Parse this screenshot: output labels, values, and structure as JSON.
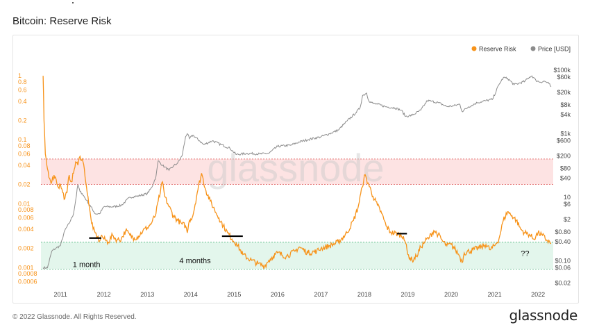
{
  "header": {
    "title": "Bitcoin: Reserve Risk"
  },
  "footer": {
    "copyright": "© 2022 Glassnode. All Rights Reserved.",
    "brand": "glassnode"
  },
  "colors": {
    "reserve_risk": "#f7931a",
    "price": "#8c8c8c",
    "red_band": "#fde3e3",
    "green_band": "#e3f6ec"
  },
  "chart_data": {
    "type": "line",
    "watermark": "glassnode",
    "legend": {
      "placement": "top-right",
      "entries": [
        "Reserve Risk",
        "Price [USD]"
      ]
    },
    "x_ticks": [
      "2011",
      "2012",
      "2013",
      "2014",
      "2015",
      "2016",
      "2017",
      "2018",
      "2019",
      "2020",
      "2021",
      "2022"
    ],
    "left_axis": {
      "scale": "log",
      "range": [
        0.0005,
        1.5
      ],
      "ticks": [
        {
          "v": 1,
          "label": "1"
        },
        {
          "v": 0.8,
          "label": "0.8"
        },
        {
          "v": 0.6,
          "label": "0.6"
        },
        {
          "v": 0.4,
          "label": "0.4"
        },
        {
          "v": 0.2,
          "label": "0.2"
        },
        {
          "v": 0.1,
          "label": "0.1"
        },
        {
          "v": 0.08,
          "label": "0.08"
        },
        {
          "v": 0.06,
          "label": "0.06"
        },
        {
          "v": 0.04,
          "label": "0.04"
        },
        {
          "v": 0.02,
          "label": "0.02"
        },
        {
          "v": 0.01,
          "label": "0.01"
        },
        {
          "v": 0.008,
          "label": "0.008"
        },
        {
          "v": 0.006,
          "label": "0.006"
        },
        {
          "v": 0.004,
          "label": "0.004"
        },
        {
          "v": 0.002,
          "label": "0.002"
        },
        {
          "v": 0.001,
          "label": "0.001"
        },
        {
          "v": 0.0008,
          "label": "0.0008"
        },
        {
          "v": 0.0006,
          "label": "0.0006"
        }
      ]
    },
    "right_axis": {
      "scale": "log",
      "range": [
        0.015,
        150000
      ],
      "ticks": [
        {
          "v": 100000,
          "label": "$100k"
        },
        {
          "v": 60000,
          "label": "$60k"
        },
        {
          "v": 20000,
          "label": "$20k"
        },
        {
          "v": 8000,
          "label": "$8k"
        },
        {
          "v": 4000,
          "label": "$4k"
        },
        {
          "v": 1000,
          "label": "$1k"
        },
        {
          "v": 600,
          "label": "$600"
        },
        {
          "v": 200,
          "label": "$200"
        },
        {
          "v": 80,
          "label": "$80"
        },
        {
          "v": 40,
          "label": "$40"
        },
        {
          "v": 10,
          "label": "10"
        },
        {
          "v": 6,
          "label": "$6"
        },
        {
          "v": 2,
          "label": "$2"
        },
        {
          "v": 0.8,
          "label": "$0.80"
        },
        {
          "v": 0.4,
          "label": "$0.40"
        },
        {
          "v": 0.1,
          "label": "$0.10"
        },
        {
          "v": 0.06,
          "label": "$0.06"
        },
        {
          "v": 0.02,
          "label": "$0.02"
        }
      ]
    },
    "bands": [
      {
        "name": "red",
        "from": 0.02,
        "to": 0.05
      },
      {
        "name": "green",
        "from": 0.00095,
        "to": 0.0025
      }
    ],
    "annotations": [
      {
        "text": "1 month",
        "x": 2011.6,
        "y": 0.00102
      },
      {
        "text": "4 months",
        "x": 2014.1,
        "y": 0.00117
      },
      {
        "text": "??",
        "x": 2021.7,
        "y": 0.00152
      }
    ],
    "marker_segments": [
      {
        "x_from": 2011.66,
        "x_to": 2011.94,
        "y": 0.0029
      },
      {
        "x_from": 2014.72,
        "x_to": 2015.2,
        "y": 0.0031
      },
      {
        "x_from": 2018.75,
        "x_to": 2018.98,
        "y": 0.0034
      }
    ],
    "series": [
      {
        "name": "Reserve Risk",
        "axis": "left",
        "x": [
          2010.6,
          2010.62,
          2010.65,
          2010.7,
          2010.75,
          2010.8,
          2010.85,
          2010.9,
          2010.95,
          2011.0,
          2011.05,
          2011.1,
          2011.15,
          2011.2,
          2011.25,
          2011.3,
          2011.35,
          2011.4,
          2011.45,
          2011.5,
          2011.55,
          2011.6,
          2011.65,
          2011.7,
          2011.75,
          2011.8,
          2011.85,
          2011.9,
          2011.95,
          2012.0,
          2012.1,
          2012.2,
          2012.3,
          2012.4,
          2012.5,
          2012.6,
          2012.7,
          2012.8,
          2012.9,
          2013.0,
          2013.1,
          2013.2,
          2013.25,
          2013.3,
          2013.35,
          2013.4,
          2013.5,
          2013.6,
          2013.7,
          2013.8,
          2013.88,
          2013.92,
          2013.97,
          2014.05,
          2014.15,
          2014.25,
          2014.35,
          2014.45,
          2014.55,
          2014.65,
          2014.75,
          2014.85,
          2014.95,
          2015.05,
          2015.2,
          2015.4,
          2015.55,
          2015.7,
          2015.8,
          2015.9,
          2016.0,
          2016.2,
          2016.4,
          2016.5,
          2016.7,
          2016.9,
          2017.0,
          2017.2,
          2017.4,
          2017.6,
          2017.75,
          2017.85,
          2017.95,
          2018.0,
          2018.1,
          2018.2,
          2018.3,
          2018.4,
          2018.5,
          2018.6,
          2018.8,
          2018.9,
          2018.95,
          2019.0,
          2019.1,
          2019.2,
          2019.3,
          2019.4,
          2019.5,
          2019.6,
          2019.7,
          2019.8,
          2019.9,
          2020.0,
          2020.1,
          2020.2,
          2020.25,
          2020.3,
          2020.5,
          2020.7,
          2020.8,
          2020.9,
          2021.0,
          2021.1,
          2021.2,
          2021.3,
          2021.4,
          2021.5,
          2021.6,
          2021.7,
          2021.8,
          2021.9,
          2022.0,
          2022.1,
          2022.2,
          2022.3
        ],
        "y": [
          1.0,
          0.2,
          0.06,
          0.035,
          0.025,
          0.022,
          0.028,
          0.024,
          0.018,
          0.02,
          0.015,
          0.012,
          0.015,
          0.028,
          0.022,
          0.03,
          0.045,
          0.04,
          0.055,
          0.05,
          0.035,
          0.018,
          0.01,
          0.006,
          0.004,
          0.0035,
          0.003,
          0.0026,
          0.0032,
          0.0028,
          0.0025,
          0.0032,
          0.0027,
          0.0028,
          0.0038,
          0.0032,
          0.0029,
          0.0031,
          0.0038,
          0.0042,
          0.005,
          0.007,
          0.011,
          0.015,
          0.022,
          0.013,
          0.009,
          0.0065,
          0.0055,
          0.0048,
          0.0045,
          0.0035,
          0.0055,
          0.0065,
          0.015,
          0.03,
          0.016,
          0.011,
          0.008,
          0.006,
          0.0045,
          0.0035,
          0.0028,
          0.0024,
          0.0016,
          0.0013,
          0.00115,
          0.00105,
          0.0013,
          0.0015,
          0.0017,
          0.0015,
          0.0018,
          0.0021,
          0.0017,
          0.0018,
          0.002,
          0.0022,
          0.0025,
          0.0035,
          0.0055,
          0.0085,
          0.018,
          0.028,
          0.02,
          0.013,
          0.0095,
          0.007,
          0.0045,
          0.0036,
          0.0033,
          0.0031,
          0.0024,
          0.0016,
          0.0013,
          0.0015,
          0.0021,
          0.0026,
          0.003,
          0.0038,
          0.0033,
          0.0026,
          0.0022,
          0.0023,
          0.0019,
          0.0015,
          0.0012,
          0.0017,
          0.0019,
          0.0021,
          0.0023,
          0.0019,
          0.0022,
          0.0028,
          0.0055,
          0.0075,
          0.0065,
          0.0055,
          0.004,
          0.0035,
          0.0033,
          0.0028,
          0.0035,
          0.0032,
          0.0027,
          0.0024
        ]
      },
      {
        "name": "Price [USD]",
        "axis": "right",
        "x": [
          2010.6,
          2010.7,
          2010.8,
          2010.9,
          2011.0,
          2011.1,
          2011.2,
          2011.3,
          2011.35,
          2011.4,
          2011.45,
          2011.5,
          2011.6,
          2011.7,
          2011.8,
          2011.9,
          2012.0,
          2012.2,
          2012.4,
          2012.6,
          2012.8,
          2013.0,
          2013.1,
          2013.2,
          2013.25,
          2013.3,
          2013.35,
          2013.4,
          2013.5,
          2013.6,
          2013.7,
          2013.8,
          2013.88,
          2013.92,
          2013.97,
          2014.05,
          2014.2,
          2014.3,
          2014.5,
          2014.7,
          2014.9,
          2015.05,
          2015.3,
          2015.6,
          2015.8,
          2016.0,
          2016.3,
          2016.5,
          2016.7,
          2017.0,
          2017.2,
          2017.4,
          2017.6,
          2017.8,
          2017.9,
          2017.96,
          2018.05,
          2018.1,
          2018.2,
          2018.3,
          2018.5,
          2018.7,
          2018.85,
          2018.95,
          2019.1,
          2019.3,
          2019.45,
          2019.55,
          2019.7,
          2019.9,
          2020.05,
          2020.2,
          2020.25,
          2020.4,
          2020.6,
          2020.8,
          2020.95,
          2021.1,
          2021.2,
          2021.3,
          2021.45,
          2021.55,
          2021.7,
          2021.8,
          2021.86,
          2021.95,
          2022.05,
          2022.15,
          2022.25,
          2022.3
        ],
        "y": [
          0.06,
          0.06,
          0.2,
          0.25,
          0.3,
          0.9,
          1.5,
          3,
          8,
          25,
          15,
          13,
          8,
          5,
          3,
          3,
          5,
          5,
          5.5,
          10,
          11,
          13,
          20,
          45,
          140,
          120,
          100,
          90,
          70,
          95,
          120,
          200,
          800,
          1000,
          700,
          900,
          600,
          450,
          600,
          450,
          350,
          220,
          240,
          230,
          240,
          400,
          430,
          550,
          650,
          800,
          1000,
          1300,
          2500,
          4500,
          6500,
          16000,
          19000,
          11000,
          9000,
          8500,
          7000,
          6500,
          5500,
          3500,
          3800,
          5500,
          11000,
          10500,
          9500,
          7200,
          7500,
          8500,
          5000,
          7000,
          9500,
          11000,
          12000,
          35000,
          58000,
          55000,
          35000,
          38000,
          45000,
          60000,
          66000,
          48000,
          42000,
          45000,
          38000,
          30000
        ]
      }
    ]
  }
}
